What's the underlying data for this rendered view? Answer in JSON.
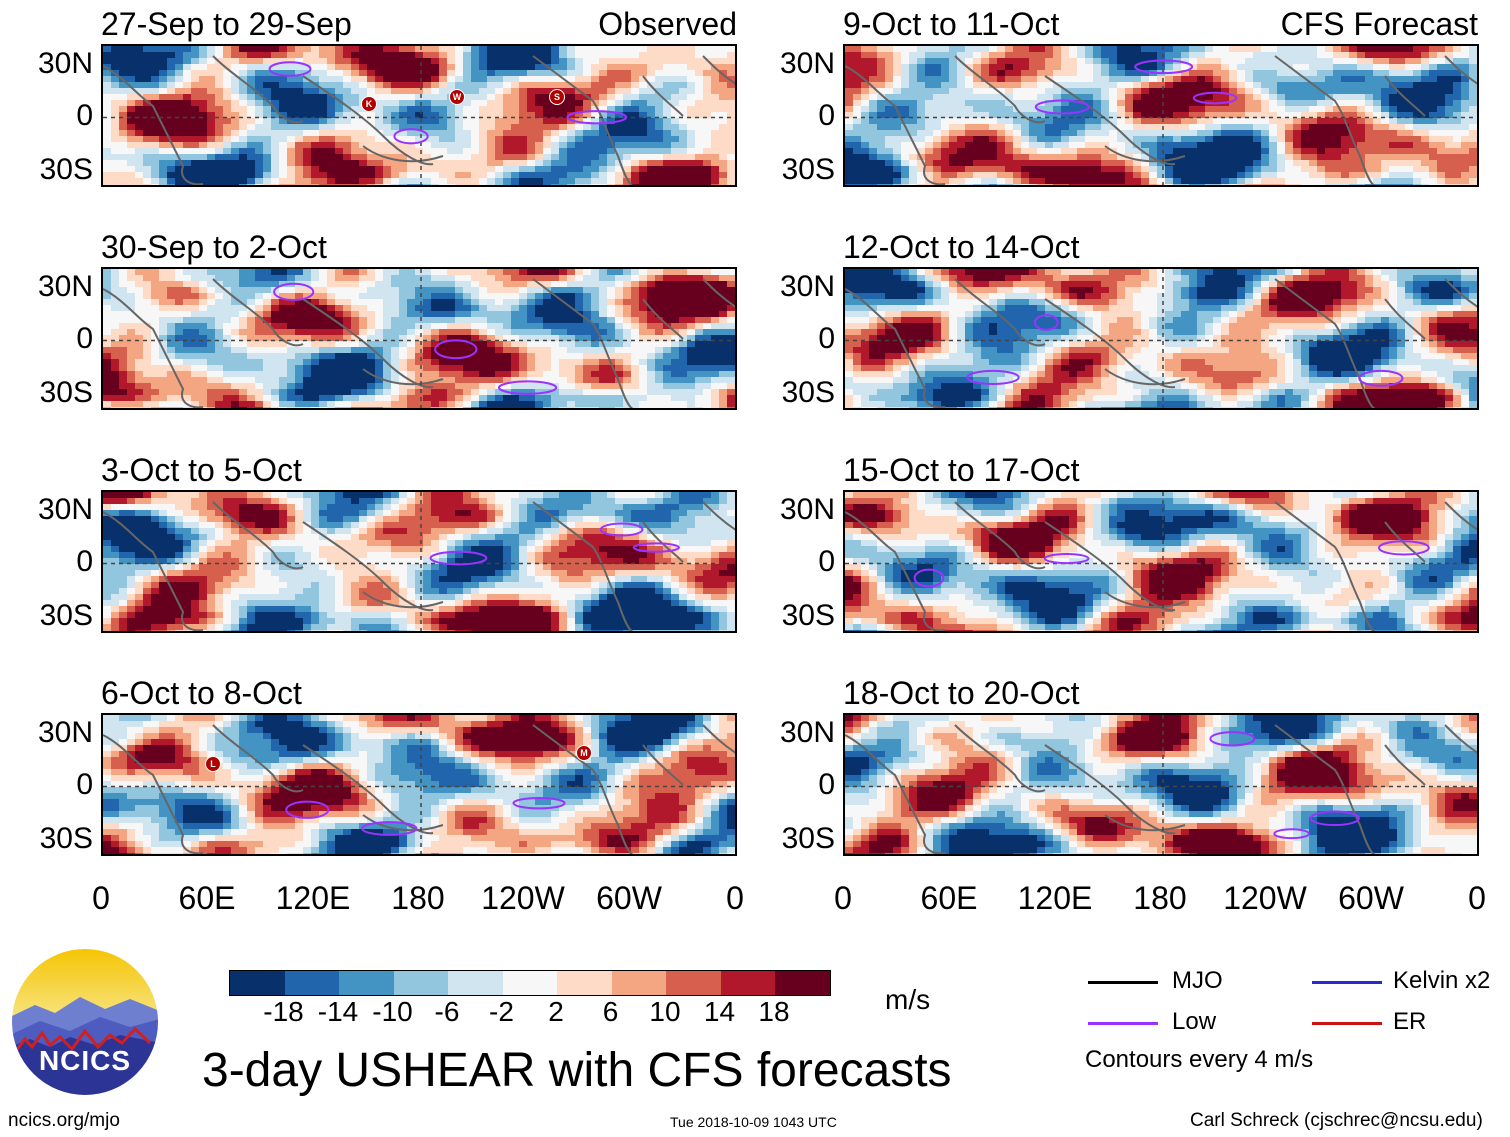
{
  "colors": {
    "scale": [
      "#08306b",
      "#2166ac",
      "#4393c3",
      "#92c5de",
      "#d1e5f0",
      "#f7f7f7",
      "#fddbc7",
      "#f4a582",
      "#d6604d",
      "#b2182b",
      "#67001f"
    ],
    "mjo": "#000000",
    "low": "#9933ff",
    "kelvin": "#2a2acc",
    "er": "#cc1111",
    "coast": "#666666"
  },
  "header": {
    "observed": "Observed",
    "forecast": "CFS Forecast"
  },
  "panels": [
    {
      "title": "27-Sep to 29-Sep",
      "side": "observed"
    },
    {
      "title": "30-Sep to 2-Oct",
      "side": "observed"
    },
    {
      "title": "3-Oct to 5-Oct",
      "side": "observed"
    },
    {
      "title": "6-Oct to 8-Oct",
      "side": "observed"
    },
    {
      "title": "9-Oct to 11-Oct",
      "side": "forecast"
    },
    {
      "title": "12-Oct to 14-Oct",
      "side": "forecast"
    },
    {
      "title": "15-Oct to 17-Oct",
      "side": "forecast"
    },
    {
      "title": "18-Oct to 20-Oct",
      "side": "forecast"
    }
  ],
  "axes": {
    "lat_labels": [
      "30N",
      "0",
      "30S"
    ],
    "lon_labels": [
      "0",
      "60E",
      "120E",
      "180",
      "120W",
      "60W",
      "0"
    ]
  },
  "storm_markers": [
    {
      "panel": 0,
      "letter": "K"
    },
    {
      "panel": 0,
      "letter": "W"
    },
    {
      "panel": 0,
      "letter": "S"
    },
    {
      "panel": 3,
      "letter": "L"
    },
    {
      "panel": 3,
      "letter": "M"
    }
  ],
  "colorbar": {
    "ticks": [
      "-18",
      "-14",
      "-10",
      "-6",
      "-2",
      "2",
      "6",
      "10",
      "14",
      "18"
    ],
    "units": "m/s"
  },
  "legend": {
    "items": [
      {
        "label": "MJO",
        "color_key": "mjo"
      },
      {
        "label": "Kelvin x2",
        "color_key": "kelvin"
      },
      {
        "label": "Low",
        "color_key": "low"
      },
      {
        "label": "ER",
        "color_key": "er"
      }
    ],
    "note": "Contours every 4 m/s"
  },
  "main_title": "3-day USHEAR with CFS forecasts",
  "logo_text": "NCICS",
  "footer": {
    "url": "ncics.org/mjo",
    "timestamp": "Tue 2018-10-09 1043 UTC",
    "author": "Carl Schreck (cjschrec@ncsu.edu)"
  },
  "chart_data": {
    "type": "heatmap",
    "variable": "3-day USHEAR",
    "units": "m/s",
    "contour_levels": [
      -18,
      -14,
      -10,
      -6,
      -2,
      2,
      6,
      10,
      14,
      18
    ],
    "x_domain": "0 to 360 longitude",
    "y_domain": "40S to 40N latitude",
    "x_ticks": [
      "0",
      "60E",
      "120E",
      "180",
      "120W",
      "60W",
      "0"
    ],
    "y_ticks": [
      "30N",
      "0",
      "30S"
    ]
  }
}
